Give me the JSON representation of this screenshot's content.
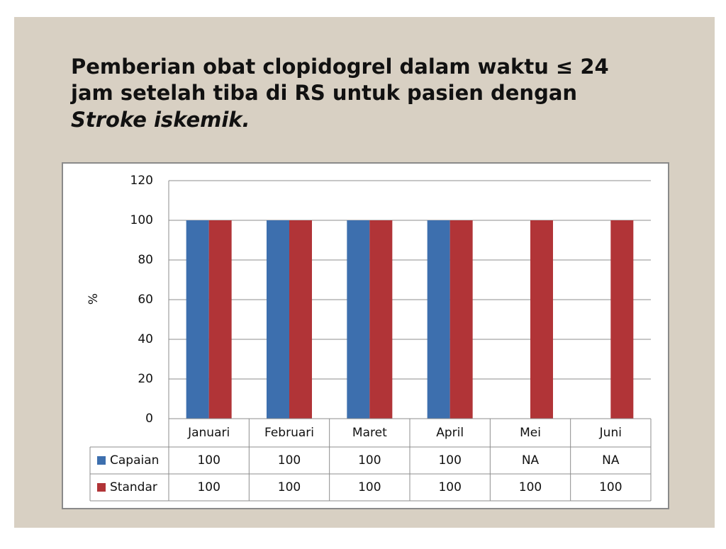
{
  "chart_data": {
    "type": "bar",
    "title": [
      "Pemberian obat clopidogrel dalam waktu ≤ 24",
      "jam setelah tiba di RS untuk pasien dengan",
      "Stroke iskemik."
    ],
    "y_label": "%",
    "categories": [
      "Januari",
      "Februari",
      "Maret",
      "April",
      "Mei",
      "Juni"
    ],
    "series": [
      {
        "name": "Capaian",
        "color": "#3d6fae",
        "values": [
          100,
          100,
          100,
          100,
          null,
          null
        ],
        "value_labels": [
          "100",
          "100",
          "100",
          "100",
          "NA",
          "NA"
        ]
      },
      {
        "name": "Standar",
        "color": "#b13437",
        "values": [
          100,
          100,
          100,
          100,
          100,
          100
        ]
      }
    ],
    "ylim": [
      0,
      120
    ],
    "yticks": [
      0,
      20,
      40,
      60,
      80,
      100,
      120
    ],
    "grid": true
  }
}
